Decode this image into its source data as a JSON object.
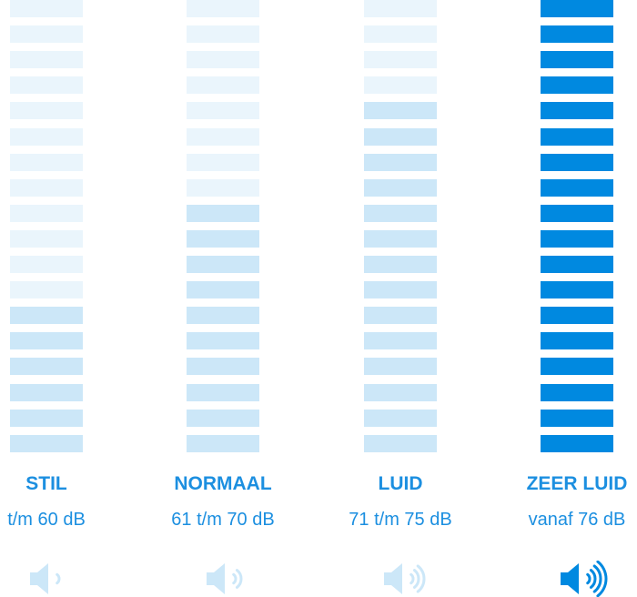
{
  "colors": {
    "inactive": "#eaf5fc",
    "active_light": "#cce7f8",
    "active_full": "#0089e0",
    "text": "#1c8fe0"
  },
  "levels": [
    {
      "title": "STIL",
      "range": "t/m 60 dB",
      "filled_bars": 6,
      "total_bars": 18,
      "fill": "active_light",
      "icon": "speaker-icon",
      "waves": 1
    },
    {
      "title": "NORMAAL",
      "range": "61 t/m 70 dB",
      "filled_bars": 10,
      "total_bars": 18,
      "fill": "active_light",
      "icon": "speaker-icon",
      "waves": 2
    },
    {
      "title": "LUID",
      "range": "71 t/m 75 dB",
      "filled_bars": 14,
      "total_bars": 18,
      "fill": "active_light",
      "icon": "speaker-icon",
      "waves": 3
    },
    {
      "title": "ZEER LUID",
      "range": "vanaf 76 dB",
      "filled_bars": 18,
      "total_bars": 18,
      "fill": "active_full",
      "icon": "speaker-icon",
      "waves": 4
    }
  ]
}
